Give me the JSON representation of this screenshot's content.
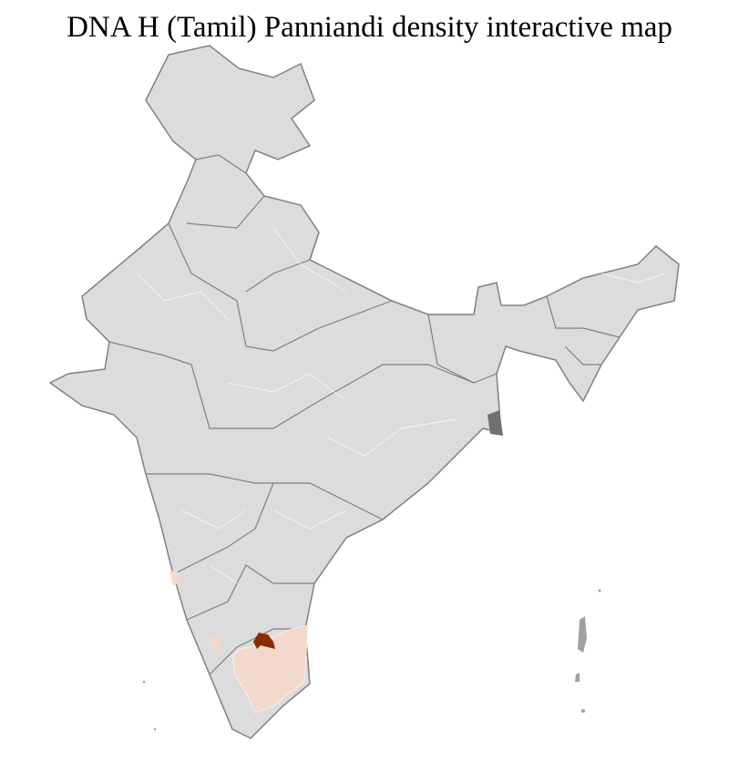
{
  "title": "DNA H (Tamil) Panniandi density interactive map",
  "map": {
    "region": "India",
    "base_fill": "#dcdcdc",
    "district_border_color": "#ffffff",
    "state_border_color": "#808080",
    "density_colors": {
      "low": "#f3d9cc",
      "high": "#8b2d00"
    },
    "highlighted": [
      {
        "area": "Tamil Nadu districts",
        "level": "low"
      },
      {
        "area": "Karnataka coastal districts",
        "level": "low"
      },
      {
        "area": "northern Tamil Nadu district",
        "level": "high"
      }
    ]
  }
}
